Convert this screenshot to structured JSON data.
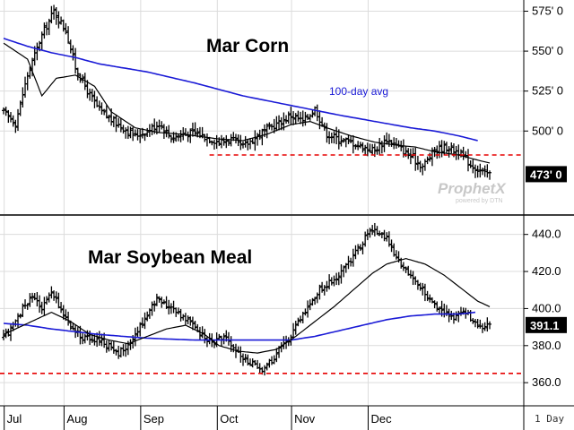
{
  "chart_data": [
    {
      "type": "ohlc",
      "title": "Mar Corn",
      "ylim": [
        448,
        582
      ],
      "y_ticks": [
        {
          "value": 500,
          "label": "500' 0"
        },
        {
          "value": 525,
          "label": "525' 0"
        },
        {
          "value": 550,
          "label": "550' 0"
        },
        {
          "value": 575,
          "label": "575' 0"
        }
      ],
      "last_value": 473,
      "last_label": "473' 0",
      "support_level": 485,
      "annotation": "100-day avg",
      "close_anchors": [
        [
          0,
          512
        ],
        [
          5,
          505
        ],
        [
          10,
          535
        ],
        [
          16,
          560
        ],
        [
          21,
          575
        ],
        [
          26,
          563
        ],
        [
          30,
          540
        ],
        [
          35,
          525
        ],
        [
          40,
          513
        ],
        [
          45,
          507
        ],
        [
          50,
          502
        ],
        [
          55,
          497
        ],
        [
          60,
          500
        ],
        [
          65,
          505
        ],
        [
          70,
          496
        ],
        [
          75,
          498
        ],
        [
          80,
          499
        ],
        [
          85,
          496
        ],
        [
          90,
          493
        ],
        [
          95,
          495
        ],
        [
          100,
          490
        ],
        [
          105,
          496
        ],
        [
          110,
          501
        ],
        [
          115,
          505
        ],
        [
          120,
          510
        ],
        [
          125,
          506
        ],
        [
          130,
          514
        ],
        [
          135,
          498
        ],
        [
          140,
          495
        ],
        [
          145,
          493
        ],
        [
          150,
          490
        ],
        [
          155,
          488
        ],
        [
          160,
          495
        ],
        [
          165,
          490
        ],
        [
          170,
          484
        ],
        [
          175,
          478
        ],
        [
          180,
          488
        ],
        [
          185,
          490
        ],
        [
          190,
          487
        ],
        [
          195,
          479
        ],
        [
          200,
          474
        ],
        [
          203,
          473
        ]
      ],
      "ma_short_anchors": [
        [
          0,
          555
        ],
        [
          10,
          545
        ],
        [
          16,
          522
        ],
        [
          22,
          533
        ],
        [
          30,
          535
        ],
        [
          38,
          528
        ],
        [
          45,
          512
        ],
        [
          55,
          502
        ],
        [
          65,
          499
        ],
        [
          75,
          498
        ],
        [
          90,
          495
        ],
        [
          100,
          494
        ],
        [
          110,
          498
        ],
        [
          120,
          504
        ],
        [
          128,
          506
        ],
        [
          135,
          502
        ],
        [
          145,
          497
        ],
        [
          155,
          493
        ],
        [
          165,
          491
        ],
        [
          172,
          490
        ],
        [
          180,
          487
        ],
        [
          190,
          485
        ],
        [
          200,
          481
        ],
        [
          203,
          480
        ]
      ],
      "ma_long_anchors": [
        [
          0,
          558
        ],
        [
          10,
          553
        ],
        [
          20,
          549
        ],
        [
          30,
          546
        ],
        [
          40,
          542
        ],
        [
          60,
          537
        ],
        [
          80,
          530
        ],
        [
          100,
          522
        ],
        [
          120,
          516
        ],
        [
          140,
          510
        ],
        [
          155,
          506
        ],
        [
          170,
          502
        ],
        [
          180,
          500
        ],
        [
          190,
          497
        ],
        [
          198,
          494
        ]
      ]
    },
    {
      "type": "ohlc",
      "title": "Mar Soybean Meal",
      "ylim": [
        348,
        450
      ],
      "y_ticks": [
        {
          "value": 360,
          "label": "360.0"
        },
        {
          "value": 380,
          "label": "380.0"
        },
        {
          "value": 400,
          "label": "400.0"
        },
        {
          "value": 420,
          "label": "420.0"
        },
        {
          "value": 440,
          "label": "440.0"
        }
      ],
      "last_value": 391.1,
      "last_label": "391.1",
      "support_level": 365,
      "close_anchors": [
        [
          0,
          384
        ],
        [
          5,
          392
        ],
        [
          8,
          400
        ],
        [
          12,
          407
        ],
        [
          16,
          400
        ],
        [
          20,
          408
        ],
        [
          24,
          400
        ],
        [
          28,
          390
        ],
        [
          32,
          385
        ],
        [
          38,
          383
        ],
        [
          44,
          380
        ],
        [
          48,
          376
        ],
        [
          52,
          379
        ],
        [
          56,
          388
        ],
        [
          60,
          397
        ],
        [
          64,
          405
        ],
        [
          70,
          400
        ],
        [
          76,
          395
        ],
        [
          80,
          390
        ],
        [
          84,
          384
        ],
        [
          88,
          382
        ],
        [
          92,
          385
        ],
        [
          96,
          378
        ],
        [
          100,
          374
        ],
        [
          104,
          370
        ],
        [
          108,
          367
        ],
        [
          112,
          372
        ],
        [
          116,
          379
        ],
        [
          120,
          385
        ],
        [
          124,
          395
        ],
        [
          128,
          403
        ],
        [
          132,
          410
        ],
        [
          136,
          414
        ],
        [
          140,
          418
        ],
        [
          144,
          425
        ],
        [
          148,
          432
        ],
        [
          152,
          440
        ],
        [
          156,
          442
        ],
        [
          160,
          438
        ],
        [
          164,
          427
        ],
        [
          168,
          420
        ],
        [
          172,
          415
        ],
        [
          176,
          408
        ],
        [
          180,
          402
        ],
        [
          184,
          398
        ],
        [
          188,
          395
        ],
        [
          192,
          399
        ],
        [
          196,
          394
        ],
        [
          200,
          388
        ],
        [
          203,
          391
        ]
      ],
      "ma_short_anchors": [
        [
          0,
          386
        ],
        [
          10,
          392
        ],
        [
          20,
          398
        ],
        [
          28,
          393
        ],
        [
          36,
          386
        ],
        [
          44,
          383
        ],
        [
          52,
          381
        ],
        [
          60,
          385
        ],
        [
          68,
          389
        ],
        [
          76,
          391
        ],
        [
          84,
          386
        ],
        [
          90,
          380
        ],
        [
          98,
          377
        ],
        [
          106,
          376
        ],
        [
          114,
          378
        ],
        [
          122,
          385
        ],
        [
          130,
          393
        ],
        [
          138,
          401
        ],
        [
          146,
          410
        ],
        [
          154,
          419
        ],
        [
          160,
          424
        ],
        [
          168,
          427
        ],
        [
          176,
          424
        ],
        [
          184,
          418
        ],
        [
          192,
          410
        ],
        [
          198,
          404
        ],
        [
          203,
          401
        ]
      ],
      "ma_long_anchors": [
        [
          0,
          392
        ],
        [
          10,
          391
        ],
        [
          20,
          389
        ],
        [
          40,
          386
        ],
        [
          60,
          384
        ],
        [
          80,
          383
        ],
        [
          100,
          383
        ],
        [
          120,
          383
        ],
        [
          130,
          385
        ],
        [
          140,
          388
        ],
        [
          150,
          391
        ],
        [
          160,
          394
        ],
        [
          170,
          396
        ],
        [
          180,
          397
        ],
        [
          190,
          397
        ],
        [
          197,
          398
        ]
      ]
    }
  ],
  "x_axis": {
    "month_labels": [
      {
        "label": "Jul",
        "bar": 1
      },
      {
        "label": "Aug",
        "bar": 26
      },
      {
        "label": "Sep",
        "bar": 58
      },
      {
        "label": "Oct",
        "bar": 90
      },
      {
        "label": "Nov",
        "bar": 121
      },
      {
        "label": "Dec",
        "bar": 153
      }
    ],
    "period_label": "1 Day"
  },
  "watermark": {
    "brand": "ProphetX",
    "sub": "powered by DTN"
  },
  "colors": {
    "ma_long": "#1a1ad6",
    "ma_short": "#000000",
    "support": "#e60000",
    "bars": "#000000",
    "last_label_bg": "#000000"
  }
}
